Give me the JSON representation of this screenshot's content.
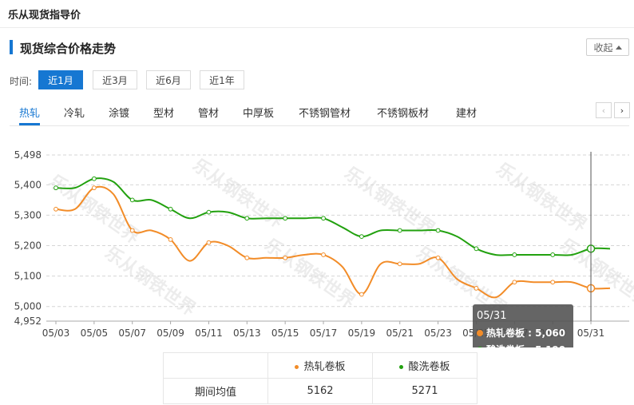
{
  "app": {
    "title": "乐从现货指导价"
  },
  "section": {
    "title": "现货综合价格走势",
    "collapse_label": "收起"
  },
  "time_filter": {
    "label": "时间:",
    "options": [
      "近1月",
      "近3月",
      "近6月",
      "近1年"
    ],
    "selected": "近1月"
  },
  "tabs": {
    "items": [
      "热轧",
      "冷轧",
      "涂镀",
      "型材",
      "管材",
      "中厚板",
      "不锈钢管材",
      "不锈钢板材",
      "建材"
    ],
    "selected": "热轧"
  },
  "nav": {
    "prev": "‹",
    "next": "›"
  },
  "colors": {
    "accent": "#1677d2",
    "series_orange": "#f28c28",
    "series_green": "#22a10f"
  },
  "watermark": {
    "text": "乐从钢铁世界"
  },
  "chart_data": {
    "type": "line",
    "x": [
      "05/03",
      "05/04",
      "05/05",
      "05/06",
      "05/07",
      "05/08",
      "05/09",
      "05/10",
      "05/11",
      "05/12",
      "05/13",
      "05/14",
      "05/15",
      "05/16",
      "05/17",
      "05/18",
      "05/19",
      "05/20",
      "05/21",
      "05/22",
      "05/23",
      "05/24",
      "05/25",
      "05/26",
      "05/27",
      "05/28",
      "05/29",
      "05/30",
      "05/31",
      "06/01"
    ],
    "x_tick_labels": [
      "05/03",
      "05/05",
      "05/07",
      "05/09",
      "05/11",
      "05/13",
      "05/15",
      "05/17",
      "05/19",
      "05/21",
      "05/23",
      "05/25",
      "05/27",
      "05/29",
      "05/31"
    ],
    "ylim": [
      4952,
      5498
    ],
    "y_ticks": [
      4952,
      5000,
      5100,
      5200,
      5300,
      5400,
      5498
    ],
    "y_tick_labels": [
      "4,952",
      "5,000",
      "5,100",
      "5,200",
      "5,300",
      "5,400",
      "5,498"
    ],
    "grid": true,
    "series": [
      {
        "name": "热轧卷板",
        "color": "#f28c28",
        "values": [
          5320,
          5320,
          5390,
          5370,
          5250,
          5250,
          5220,
          5150,
          5210,
          5200,
          5160,
          5160,
          5160,
          5170,
          5170,
          5130,
          5040,
          5140,
          5140,
          5140,
          5160,
          5090,
          5060,
          5030,
          5080,
          5080,
          5080,
          5080,
          5060,
          5060
        ]
      },
      {
        "name": "酸洗卷板",
        "color": "#22a10f",
        "values": [
          5390,
          5390,
          5420,
          5410,
          5350,
          5350,
          5320,
          5290,
          5310,
          5310,
          5290,
          5290,
          5290,
          5290,
          5290,
          5260,
          5230,
          5250,
          5250,
          5250,
          5250,
          5230,
          5190,
          5170,
          5170,
          5170,
          5170,
          5170,
          5190,
          5190
        ]
      }
    ],
    "tooltip": {
      "date": "05/31",
      "lines": [
        "热轧卷板 : 5,060",
        "酸洗卷板 : 5,190"
      ]
    }
  },
  "summary": {
    "row_label": "期间均值",
    "columns": [
      {
        "name": "热轧卷板",
        "color": "#f28c28",
        "value": "5162"
      },
      {
        "name": "酸洗卷板",
        "color": "#22a10f",
        "value": "5271"
      }
    ]
  }
}
